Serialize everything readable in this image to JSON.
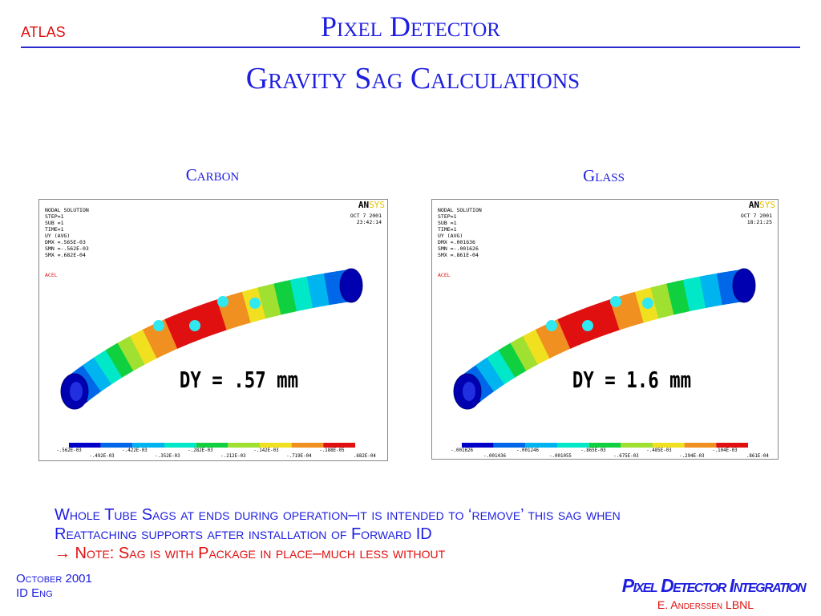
{
  "header": {
    "logo": "ATLAS",
    "title": "Pixel Detector"
  },
  "subtitle": "Gravity Sag Calculations",
  "contour_colors": [
    "#0000c8",
    "#0068e8",
    "#00b4f0",
    "#00e8c8",
    "#10d040",
    "#a0e030",
    "#f0e020",
    "#f09020",
    "#e01010"
  ],
  "panels": [
    {
      "caption": "Carbon",
      "info": [
        "NODAL SOLUTION",
        "STEP=1",
        "SUB =1",
        "TIME=1",
        "UY        (AVG)",
        "DMX =.565E-03",
        "SMN =-.562E-03",
        "SMX =.682E-04"
      ],
      "acel": "ACEL",
      "brand_main": "AN",
      "brand_accent": "SYS",
      "date": "OCT  7 2001",
      "time": "23:42:14",
      "annotation": "DY = .57 mm",
      "legend_labels": [
        "-.562E-03",
        "-.492E-03",
        "-.422E-03",
        "-.352E-03",
        "-.282E-03",
        "-.212E-03",
        "-.142E-03",
        "-.719E-04",
        "-.188E-05",
        ".682E-04"
      ]
    },
    {
      "caption": "Glass",
      "info": [
        "NODAL SOLUTION",
        "STEP=1",
        "SUB =1",
        "TIME=1",
        "UY        (AVG)",
        "DMX =.001636",
        "SMN =-.001626",
        "SMX =.861E-04"
      ],
      "acel": "ACEL",
      "brand_main": "AN",
      "brand_accent": "SYS",
      "date": "OCT  7 2001",
      "time": "18:21:25",
      "annotation": "DY = 1.6 mm",
      "legend_labels": [
        "-.001626",
        "-.001436",
        "-.001246",
        "-.001055",
        "-.865E-03",
        "-.675E-03",
        "-.485E-03",
        "-.294E-03",
        "-.104E-03",
        ".861E-04"
      ]
    }
  ],
  "notes": [
    "Whole Tube Sags at ends during operation–it is intended to ‘remove’ this sag when",
    "Reattaching supports after installation of Forward ID",
    "→ Note:  Sag is with Package in place–much less without"
  ],
  "footer": {
    "date": "October 2001",
    "group": "ID Eng",
    "project": "Pixel Detector Integration",
    "author": "E. Anderssen LBNL"
  }
}
